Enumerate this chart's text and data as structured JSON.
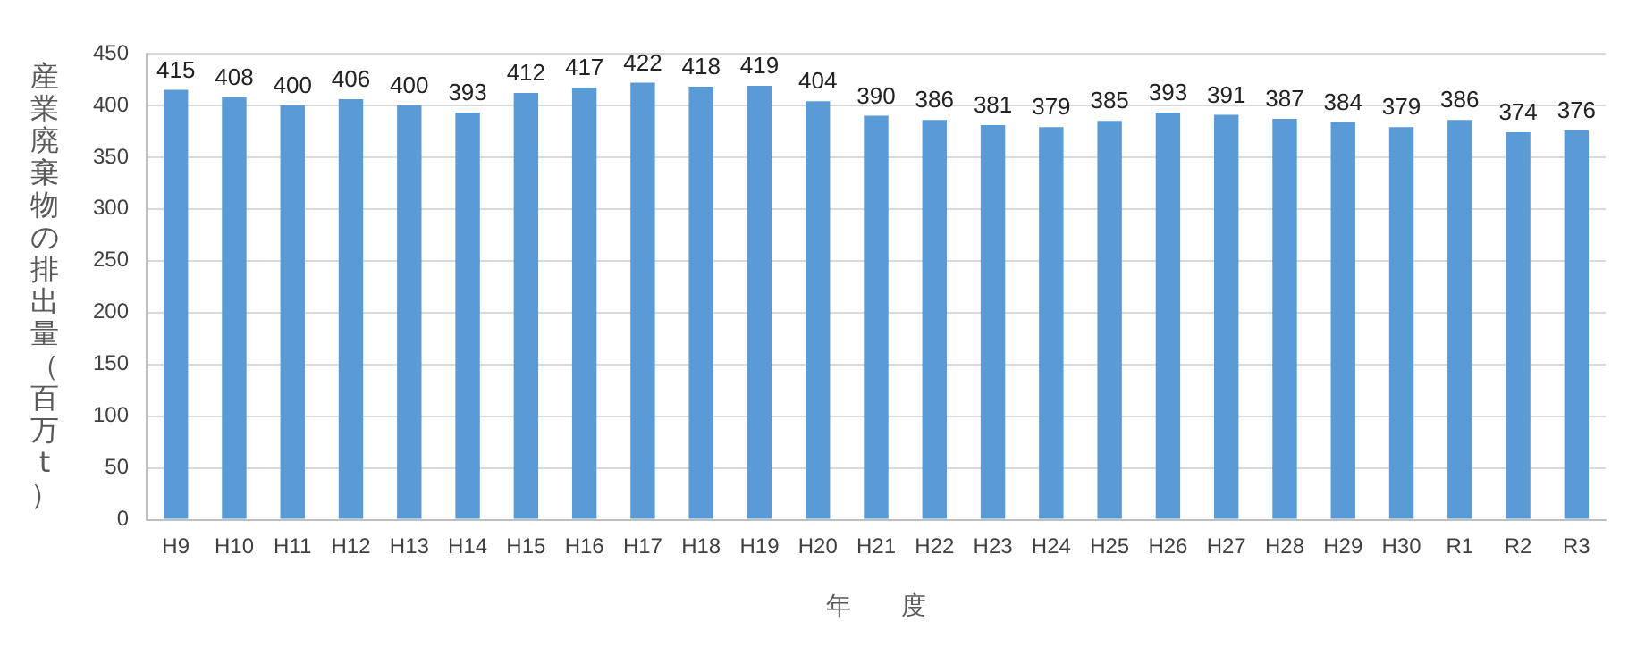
{
  "chart_data": {
    "type": "bar",
    "ylabel": "産業廃棄物の排出量（百万t）",
    "xlabel": "年　　度",
    "categories": [
      "H9",
      "H10",
      "H11",
      "H12",
      "H13",
      "H14",
      "H15",
      "H16",
      "H17",
      "H18",
      "H19",
      "H20",
      "H21",
      "H22",
      "H23",
      "H24",
      "H25",
      "H26",
      "H27",
      "H28",
      "H29",
      "H30",
      "R1",
      "R2",
      "R3"
    ],
    "values": [
      415,
      408,
      400,
      406,
      400,
      393,
      412,
      417,
      422,
      418,
      419,
      404,
      390,
      386,
      381,
      379,
      385,
      393,
      391,
      387,
      384,
      379,
      386,
      374,
      376
    ],
    "color": "#5b9bd5",
    "ylim": [
      0,
      450
    ],
    "yticks": [
      0,
      50,
      100,
      150,
      200,
      250,
      300,
      350,
      400,
      450
    ],
    "grid": "y",
    "data_labels": true
  }
}
